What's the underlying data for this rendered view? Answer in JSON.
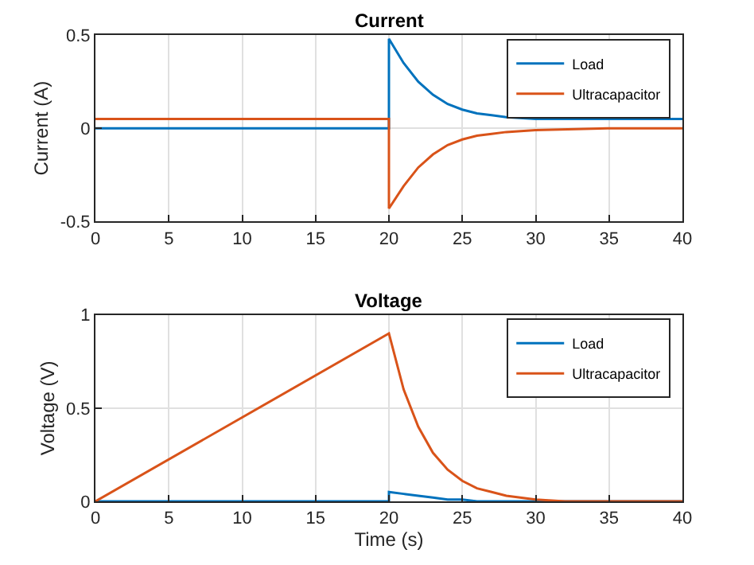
{
  "chart_data": [
    {
      "type": "line",
      "title": "Current",
      "ylabel": "Current (A)",
      "xlim": [
        0,
        40
      ],
      "xticks": [
        0,
        5,
        10,
        15,
        20,
        25,
        30,
        35,
        40
      ],
      "ylim": [
        -0.5,
        0.5
      ],
      "yticks": [
        -0.5,
        0,
        0.5
      ],
      "grid": true,
      "legend": "top right",
      "marker": "none",
      "line_style": "solid",
      "series": [
        {
          "name": "Load",
          "color": "#0072bd",
          "x": [
            0,
            20,
            20,
            21,
            22,
            23,
            24,
            25,
            26,
            27,
            28,
            30,
            35,
            40
          ],
          "values": [
            0,
            0,
            0.48,
            0.35,
            0.25,
            0.18,
            0.13,
            0.1,
            0.08,
            0.07,
            0.06,
            0.05,
            0.05,
            0.05
          ]
        },
        {
          "name": "Ultracapacitor",
          "color": "#d95319",
          "x": [
            0,
            20,
            20,
            21,
            22,
            23,
            24,
            25,
            26,
            27,
            28,
            30,
            35,
            40
          ],
          "values": [
            0.05,
            0.05,
            -0.43,
            -0.31,
            -0.21,
            -0.14,
            -0.09,
            -0.06,
            -0.04,
            -0.03,
            -0.02,
            -0.01,
            0,
            0
          ]
        }
      ]
    },
    {
      "type": "line",
      "title": "Voltage",
      "xlabel": "Time (s)",
      "ylabel": "Voltage (V)",
      "xlim": [
        0,
        40
      ],
      "xticks": [
        0,
        5,
        10,
        15,
        20,
        25,
        30,
        35,
        40
      ],
      "ylim": [
        0,
        1
      ],
      "yticks": [
        0,
        0.5,
        1
      ],
      "grid": true,
      "legend": "top right",
      "marker": "none",
      "line_style": "solid",
      "series": [
        {
          "name": "Load",
          "color": "#0072bd",
          "x": [
            0,
            20,
            20,
            21,
            22,
            23,
            24,
            25,
            26,
            28,
            30,
            35,
            40
          ],
          "values": [
            0,
            0,
            0.05,
            0.04,
            0.03,
            0.02,
            0.01,
            0.01,
            0,
            0,
            0,
            0,
            0
          ]
        },
        {
          "name": "Ultracapacitor",
          "color": "#d95319",
          "x": [
            0,
            20,
            21,
            22,
            23,
            24,
            25,
            26,
            27,
            28,
            30,
            32,
            35,
            40
          ],
          "values": [
            0,
            0.9,
            0.6,
            0.4,
            0.26,
            0.17,
            0.11,
            0.07,
            0.05,
            0.03,
            0.01,
            0,
            0,
            0
          ]
        }
      ]
    }
  ]
}
